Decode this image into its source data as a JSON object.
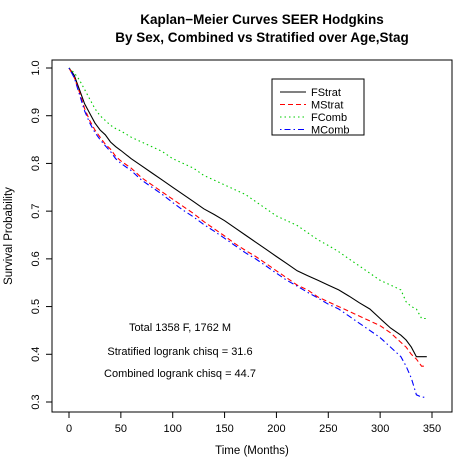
{
  "chart_data": {
    "type": "line",
    "title": "Kaplan−Meier Curves SEER Hodgkins",
    "subtitle": "By Sex, Combined vs Stratified over Age,Stag",
    "xlabel": "Time (Months)",
    "ylabel": "Survival Probability",
    "xlim": [
      0,
      350
    ],
    "ylim": [
      0.3,
      1.0
    ],
    "xticks": [
      0,
      50,
      100,
      150,
      200,
      250,
      300,
      350
    ],
    "yticks": [
      0.3,
      0.4,
      0.5,
      0.6,
      0.7,
      0.8,
      0.9,
      1.0
    ],
    "grid": false,
    "legend_position": "top-right",
    "annotations": [
      "Total 1358 F, 1762 M",
      "Stratified logrank chisq = 31.6",
      "Combined logrank chisq = 44.7"
    ],
    "series": [
      {
        "name": "FStrat",
        "color": "#000000",
        "line_style": "solid",
        "points": [
          [
            0,
            1.0
          ],
          [
            5,
            0.985
          ],
          [
            10,
            0.955
          ],
          [
            15,
            0.925
          ],
          [
            20,
            0.905
          ],
          [
            25,
            0.885
          ],
          [
            30,
            0.87
          ],
          [
            35,
            0.86
          ],
          [
            40,
            0.845
          ],
          [
            45,
            0.835
          ],
          [
            50,
            0.827
          ],
          [
            60,
            0.81
          ],
          [
            70,
            0.795
          ],
          [
            80,
            0.78
          ],
          [
            90,
            0.765
          ],
          [
            100,
            0.75
          ],
          [
            110,
            0.735
          ],
          [
            120,
            0.72
          ],
          [
            130,
            0.705
          ],
          [
            140,
            0.693
          ],
          [
            150,
            0.68
          ],
          [
            160,
            0.665
          ],
          [
            170,
            0.65
          ],
          [
            180,
            0.635
          ],
          [
            190,
            0.62
          ],
          [
            200,
            0.605
          ],
          [
            210,
            0.59
          ],
          [
            220,
            0.575
          ],
          [
            230,
            0.565
          ],
          [
            240,
            0.555
          ],
          [
            250,
            0.545
          ],
          [
            260,
            0.535
          ],
          [
            270,
            0.522
          ],
          [
            280,
            0.508
          ],
          [
            290,
            0.495
          ],
          [
            300,
            0.475
          ],
          [
            310,
            0.455
          ],
          [
            320,
            0.44
          ],
          [
            325,
            0.43
          ],
          [
            330,
            0.415
          ],
          [
            335,
            0.395
          ],
          [
            340,
            0.395
          ],
          [
            345,
            0.395
          ]
        ]
      },
      {
        "name": "MStrat",
        "color": "#ff0000",
        "line_style": "dashed",
        "points": [
          [
            0,
            1.0
          ],
          [
            5,
            0.98
          ],
          [
            10,
            0.95
          ],
          [
            15,
            0.915
          ],
          [
            20,
            0.89
          ],
          [
            25,
            0.87
          ],
          [
            30,
            0.855
          ],
          [
            35,
            0.84
          ],
          [
            40,
            0.83
          ],
          [
            45,
            0.815
          ],
          [
            50,
            0.805
          ],
          [
            60,
            0.79
          ],
          [
            70,
            0.77
          ],
          [
            80,
            0.755
          ],
          [
            90,
            0.74
          ],
          [
            100,
            0.725
          ],
          [
            110,
            0.71
          ],
          [
            120,
            0.695
          ],
          [
            130,
            0.678
          ],
          [
            140,
            0.663
          ],
          [
            150,
            0.648
          ],
          [
            160,
            0.632
          ],
          [
            170,
            0.618
          ],
          [
            180,
            0.605
          ],
          [
            190,
            0.59
          ],
          [
            200,
            0.575
          ],
          [
            210,
            0.56
          ],
          [
            220,
            0.545
          ],
          [
            230,
            0.535
          ],
          [
            240,
            0.52
          ],
          [
            250,
            0.51
          ],
          [
            260,
            0.5
          ],
          [
            270,
            0.49
          ],
          [
            280,
            0.48
          ],
          [
            290,
            0.47
          ],
          [
            300,
            0.46
          ],
          [
            310,
            0.445
          ],
          [
            320,
            0.425
          ],
          [
            325,
            0.415
          ],
          [
            330,
            0.4
          ],
          [
            335,
            0.39
          ],
          [
            340,
            0.375
          ],
          [
            345,
            0.375
          ]
        ]
      },
      {
        "name": "FComb",
        "color": "#00cc00",
        "line_style": "dotted",
        "points": [
          [
            0,
            1.0
          ],
          [
            5,
            0.99
          ],
          [
            10,
            0.975
          ],
          [
            15,
            0.955
          ],
          [
            20,
            0.935
          ],
          [
            25,
            0.915
          ],
          [
            30,
            0.9
          ],
          [
            35,
            0.89
          ],
          [
            40,
            0.88
          ],
          [
            45,
            0.873
          ],
          [
            50,
            0.868
          ],
          [
            60,
            0.855
          ],
          [
            70,
            0.845
          ],
          [
            80,
            0.835
          ],
          [
            90,
            0.825
          ],
          [
            100,
            0.81
          ],
          [
            110,
            0.8
          ],
          [
            120,
            0.79
          ],
          [
            130,
            0.775
          ],
          [
            140,
            0.765
          ],
          [
            150,
            0.755
          ],
          [
            160,
            0.745
          ],
          [
            170,
            0.735
          ],
          [
            180,
            0.72
          ],
          [
            190,
            0.705
          ],
          [
            200,
            0.69
          ],
          [
            210,
            0.68
          ],
          [
            220,
            0.67
          ],
          [
            230,
            0.655
          ],
          [
            240,
            0.64
          ],
          [
            250,
            0.628
          ],
          [
            260,
            0.615
          ],
          [
            270,
            0.6
          ],
          [
            280,
            0.585
          ],
          [
            290,
            0.57
          ],
          [
            300,
            0.555
          ],
          [
            310,
            0.545
          ],
          [
            320,
            0.535
          ],
          [
            325,
            0.51
          ],
          [
            330,
            0.5
          ],
          [
            335,
            0.495
          ],
          [
            340,
            0.475
          ],
          [
            345,
            0.475
          ]
        ]
      },
      {
        "name": "MComb",
        "color": "#0000ff",
        "line_style": "dotdash",
        "points": [
          [
            0,
            1.0
          ],
          [
            5,
            0.98
          ],
          [
            10,
            0.945
          ],
          [
            15,
            0.91
          ],
          [
            20,
            0.885
          ],
          [
            25,
            0.865
          ],
          [
            30,
            0.85
          ],
          [
            35,
            0.837
          ],
          [
            40,
            0.825
          ],
          [
            45,
            0.81
          ],
          [
            50,
            0.8
          ],
          [
            60,
            0.785
          ],
          [
            70,
            0.765
          ],
          [
            80,
            0.75
          ],
          [
            90,
            0.735
          ],
          [
            100,
            0.718
          ],
          [
            110,
            0.702
          ],
          [
            120,
            0.688
          ],
          [
            130,
            0.672
          ],
          [
            140,
            0.658
          ],
          [
            150,
            0.643
          ],
          [
            160,
            0.628
          ],
          [
            170,
            0.613
          ],
          [
            180,
            0.6
          ],
          [
            190,
            0.585
          ],
          [
            200,
            0.57
          ],
          [
            210,
            0.555
          ],
          [
            220,
            0.543
          ],
          [
            230,
            0.53
          ],
          [
            240,
            0.518
          ],
          [
            250,
            0.505
          ],
          [
            260,
            0.495
          ],
          [
            270,
            0.48
          ],
          [
            280,
            0.465
          ],
          [
            290,
            0.45
          ],
          [
            300,
            0.435
          ],
          [
            310,
            0.415
          ],
          [
            320,
            0.395
          ],
          [
            325,
            0.375
          ],
          [
            330,
            0.35
          ],
          [
            335,
            0.315
          ],
          [
            340,
            0.31
          ],
          [
            345,
            0.31
          ]
        ]
      }
    ]
  }
}
